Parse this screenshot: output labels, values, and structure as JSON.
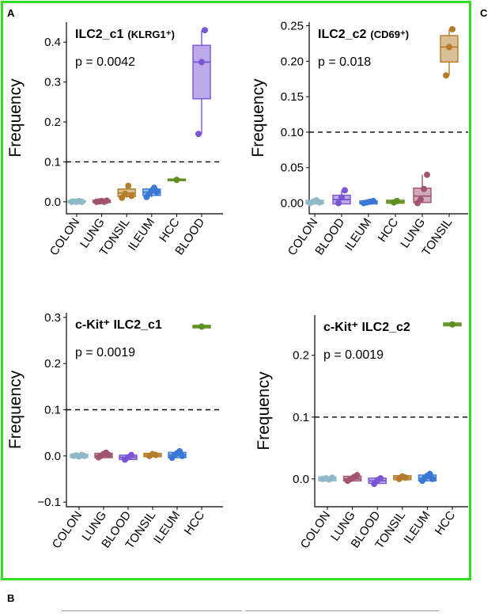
{
  "panel_labels": {
    "a": "A",
    "b": "B",
    "c": "C"
  },
  "colors": {
    "frame": "#33dd22",
    "COLON": "#8fb9c9",
    "LUNG": "#a05470",
    "TONSIL": "#b57c2b",
    "ILEUM": "#3a78d6",
    "HCC": "#5f8f1e",
    "BLOOD": "#7a55d4"
  },
  "chart_data": [
    {
      "type": "box",
      "title": "ILC2_c1",
      "title_suffix": "(KLRG1⁺)",
      "pvalue": "p = 0.0042",
      "ylabel": "Frequency",
      "ylim": [
        -0.03,
        0.45
      ],
      "yticks": [
        0.0,
        0.1,
        0.2,
        0.3,
        0.4
      ],
      "ytick_labels": [
        "0.0",
        "0.1",
        "0.2",
        "0.3",
        "0.4"
      ],
      "reference_line": 0.1,
      "categories": [
        "COLON",
        "LUNG",
        "TONSIL",
        "ILEUM",
        "HCC",
        "BLOOD"
      ],
      "series": [
        {
          "category": "COLON",
          "median": 0.0,
          "q1": 0.0,
          "q3": 0.001,
          "min": 0.0,
          "max": 0.002,
          "points": [
            0.0,
            0.001,
            0.0,
            0.002,
            0.0
          ]
        },
        {
          "category": "LUNG",
          "median": 0.0,
          "q1": 0.0,
          "q3": 0.002,
          "min": 0.0,
          "max": 0.003,
          "points": [
            0.0,
            0.001,
            0.002,
            0.0,
            0.003
          ]
        },
        {
          "category": "TONSIL",
          "median": 0.022,
          "q1": 0.015,
          "q3": 0.03,
          "min": 0.01,
          "max": 0.04,
          "points": [
            0.01,
            0.02,
            0.04,
            0.015
          ]
        },
        {
          "category": "ILEUM",
          "median": 0.024,
          "q1": 0.018,
          "q3": 0.03,
          "min": 0.012,
          "max": 0.035,
          "points": [
            0.012,
            0.02,
            0.028,
            0.035,
            0.025
          ]
        },
        {
          "category": "HCC",
          "median": 0.055,
          "q1": 0.055,
          "q3": 0.055,
          "min": 0.055,
          "max": 0.055,
          "points": [
            0.055
          ]
        },
        {
          "category": "BLOOD",
          "median": 0.35,
          "q1": 0.26,
          "q3": 0.39,
          "min": 0.17,
          "max": 0.43,
          "points": [
            0.17,
            0.35,
            0.43
          ]
        }
      ]
    },
    {
      "type": "box",
      "title": "ILC2_c2",
      "title_suffix": "(CD69⁺)",
      "pvalue": "p = 0.018",
      "ylabel": "Frequency",
      "ylim": [
        -0.015,
        0.255
      ],
      "yticks": [
        0.0,
        0.05,
        0.1,
        0.15,
        0.2,
        0.25
      ],
      "ytick_labels": [
        "0.00",
        "0.05",
        "0.10",
        "0.15",
        "0.20",
        "0.25"
      ],
      "reference_line": 0.1,
      "categories": [
        "COLON",
        "BLOOD",
        "ILEUM",
        "HCC",
        "LUNG",
        "TONSIL"
      ],
      "series": [
        {
          "category": "COLON",
          "median": 0.001,
          "q1": 0.0,
          "q3": 0.003,
          "min": 0.0,
          "max": 0.004,
          "points": [
            0.0,
            0.002,
            0.004,
            0.001
          ]
        },
        {
          "category": "BLOOD",
          "median": 0.005,
          "q1": 0.0,
          "q3": 0.01,
          "min": 0.0,
          "max": 0.018,
          "points": [
            0.0,
            0.008,
            0.018
          ]
        },
        {
          "category": "ILEUM",
          "median": 0.0,
          "q1": 0.0,
          "q3": 0.002,
          "min": 0.0,
          "max": 0.003,
          "points": [
            0.0,
            0.001,
            0.002,
            0.003
          ]
        },
        {
          "category": "HCC",
          "median": 0.002,
          "q1": 0.001,
          "q3": 0.003,
          "min": 0.0,
          "max": 0.004,
          "points": [
            0.001,
            0.003
          ]
        },
        {
          "category": "LUNG",
          "median": 0.01,
          "q1": 0.002,
          "q3": 0.02,
          "min": 0.0,
          "max": 0.04,
          "points": [
            0.0,
            0.005,
            0.02,
            0.04
          ]
        },
        {
          "category": "TONSIL",
          "median": 0.22,
          "q1": 0.2,
          "q3": 0.235,
          "min": 0.18,
          "max": 0.245,
          "points": [
            0.18,
            0.22,
            0.245
          ]
        }
      ]
    },
    {
      "type": "box",
      "title": "c-Kit⁺ ILC2_c1",
      "title_suffix": "",
      "pvalue": "p = 0.0019",
      "ylabel": "Frequency",
      "ylim": [
        -0.11,
        0.31
      ],
      "yticks": [
        -0.1,
        0.0,
        0.1,
        0.2,
        0.3
      ],
      "ytick_labels": [
        "−0.1",
        "0.0",
        "0.1",
        "0.2",
        "0.3"
      ],
      "reference_line": 0.1,
      "categories": [
        "COLON",
        "LUNG",
        "BLOOD",
        "TONSIL",
        "ILEUM",
        "HCC"
      ],
      "series": [
        {
          "category": "COLON",
          "median": 0.0,
          "q1": -0.002,
          "q3": 0.002,
          "min": -0.003,
          "max": 0.003,
          "points": [
            0.0,
            0.001,
            -0.001,
            0.002,
            0.0
          ]
        },
        {
          "category": "LUNG",
          "median": 0.0,
          "q1": -0.002,
          "q3": 0.004,
          "min": -0.004,
          "max": 0.007,
          "points": [
            -0.003,
            0.0,
            0.004,
            0.007,
            0.002
          ]
        },
        {
          "category": "BLOOD",
          "median": -0.003,
          "q1": -0.006,
          "q3": 0.0,
          "min": -0.008,
          "max": 0.002,
          "points": [
            -0.008,
            -0.003,
            0.002
          ]
        },
        {
          "category": "TONSIL",
          "median": 0.002,
          "q1": 0.0,
          "q3": 0.004,
          "min": -0.001,
          "max": 0.005,
          "points": [
            0.0,
            0.004,
            0.002
          ]
        },
        {
          "category": "ILEUM",
          "median": 0.002,
          "q1": -0.002,
          "q3": 0.006,
          "min": -0.005,
          "max": 0.01,
          "points": [
            -0.004,
            0.002,
            0.006,
            0.01,
            0.0
          ]
        },
        {
          "category": "HCC",
          "median": 0.28,
          "q1": 0.279,
          "q3": 0.281,
          "min": 0.278,
          "max": 0.282,
          "points": [
            0.28
          ]
        }
      ]
    },
    {
      "type": "box",
      "title": "c-Kit⁺ ILC2_c2",
      "title_suffix": "",
      "pvalue": "p = 0.0019",
      "ylabel": "Frequency",
      "ylim": [
        -0.045,
        0.265
      ],
      "yticks": [
        0.0,
        0.1,
        0.2
      ],
      "ytick_labels": [
        "0.0",
        "0.1",
        "0.2"
      ],
      "reference_line": 0.1,
      "categories": [
        "COLON",
        "LUNG",
        "BLOOD",
        "TONSIL",
        "ILEUM",
        "HCC"
      ],
      "series": [
        {
          "category": "COLON",
          "median": 0.0,
          "q1": -0.002,
          "q3": 0.002,
          "min": -0.003,
          "max": 0.003,
          "points": [
            0.0,
            0.001,
            -0.001,
            0.002
          ]
        },
        {
          "category": "LUNG",
          "median": 0.0,
          "q1": -0.002,
          "q3": 0.003,
          "min": -0.004,
          "max": 0.006,
          "points": [
            -0.003,
            0.0,
            0.003,
            0.006
          ]
        },
        {
          "category": "BLOOD",
          "median": -0.003,
          "q1": -0.006,
          "q3": 0.0,
          "min": -0.008,
          "max": 0.002,
          "points": [
            -0.008,
            -0.002,
            0.001
          ]
        },
        {
          "category": "TONSIL",
          "median": 0.002,
          "q1": 0.0,
          "q3": 0.004,
          "min": -0.001,
          "max": 0.005,
          "points": [
            0.0,
            0.004,
            0.002
          ]
        },
        {
          "category": "ILEUM",
          "median": 0.001,
          "q1": -0.002,
          "q3": 0.005,
          "min": -0.004,
          "max": 0.008,
          "points": [
            -0.003,
            0.002,
            0.005,
            0.008,
            0.0
          ]
        },
        {
          "category": "HCC",
          "median": 0.25,
          "q1": 0.249,
          "q3": 0.251,
          "min": 0.248,
          "max": 0.252,
          "points": [
            0.25
          ]
        }
      ]
    }
  ]
}
